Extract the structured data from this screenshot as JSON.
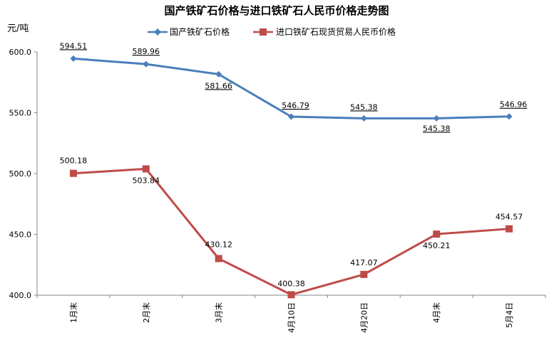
{
  "chart_data": {
    "type": "line",
    "title": "国产铁矿石价格与进口铁矿石人民币价格走势图",
    "ylabel": "元/吨",
    "xlabel": "",
    "categories": [
      "1月末",
      "2月末",
      "3月末",
      "4月10日",
      "4月20日",
      "4月末",
      "5月4日"
    ],
    "ylim": [
      400,
      600
    ],
    "yticks": [
      "400.0",
      "450.0",
      "500.0",
      "550.0",
      "600.0"
    ],
    "grid": false,
    "legend_position": "top",
    "series": [
      {
        "name": "国产铁矿石价格",
        "color": "#4a7ebb",
        "marker": "diamond",
        "values": [
          594.51,
          589.96,
          581.66,
          546.79,
          545.38,
          545.38,
          546.96
        ],
        "labels": [
          "594.51",
          "589.96",
          "581.66",
          "546.79",
          "545.38",
          "545.38",
          "546.96"
        ]
      },
      {
        "name": "进口铁矿石现货贸易人民币价格",
        "color": "#be4b48",
        "marker": "square",
        "values": [
          500.18,
          503.84,
          430.12,
          400.38,
          417.07,
          450.21,
          454.57
        ],
        "labels": [
          "500.18",
          "503.84",
          "430.12",
          "400.38",
          "417.07",
          "450.21",
          "454.57"
        ]
      }
    ]
  }
}
